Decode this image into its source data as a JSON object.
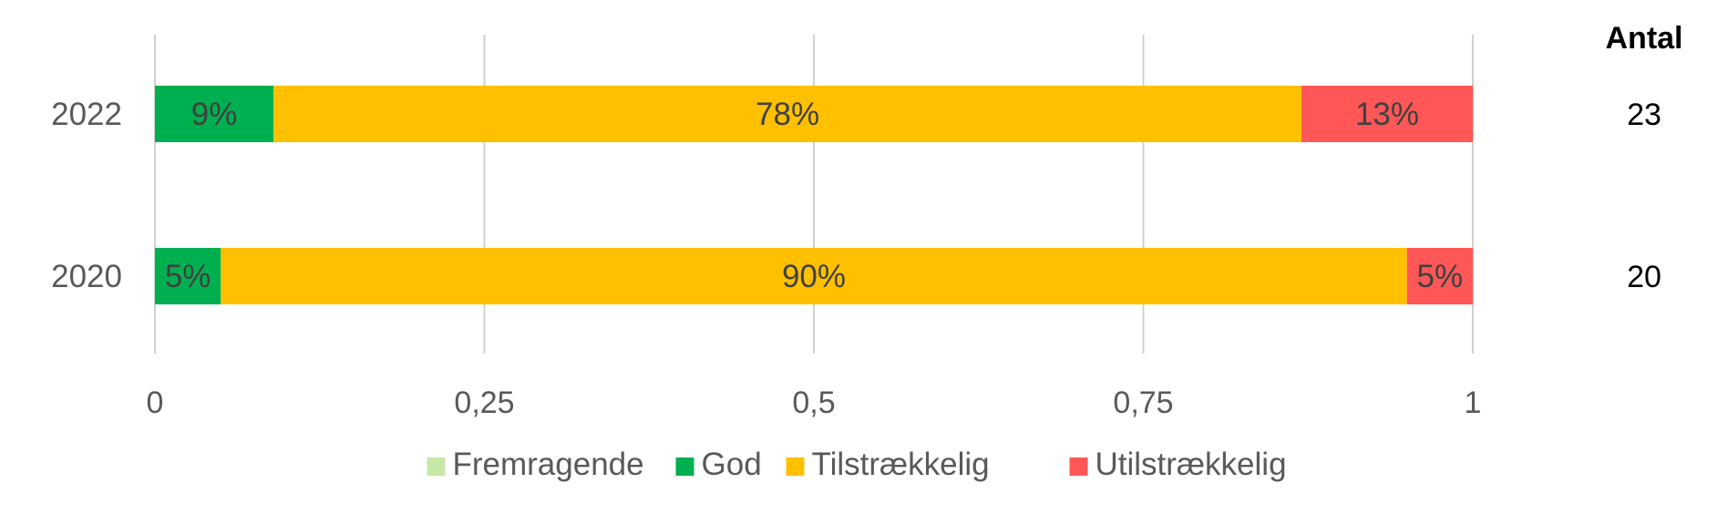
{
  "chart_data": {
    "type": "bar",
    "orientation": "horizontal",
    "stacked": true,
    "categories": [
      "2022",
      "2020"
    ],
    "series": [
      {
        "name": "Fremragende",
        "color": "#C5E8A8",
        "values": [
          0,
          0
        ],
        "labels": [
          "",
          ""
        ]
      },
      {
        "name": "God",
        "color": "#00B050",
        "values": [
          0.09,
          0.05
        ],
        "labels": [
          "9%",
          "5%"
        ]
      },
      {
        "name": "Tilstrækkelig",
        "color": "#FFC000",
        "values": [
          0.78,
          0.9
        ],
        "labels": [
          "78%",
          "90%"
        ]
      },
      {
        "name": "Utilstrækkelig",
        "color": "#FF5757",
        "values": [
          0.13,
          0.05
        ],
        "labels": [
          "13%",
          "5%"
        ]
      }
    ],
    "xlim": [
      0,
      1
    ],
    "xticks": [
      0,
      0.25,
      0.5,
      0.75,
      1
    ],
    "xtick_labels": [
      "0",
      "0,25",
      "0,5",
      "0,75",
      "1"
    ],
    "grid": true,
    "legend_position": "bottom",
    "side_column": {
      "header": "Antal",
      "values": [
        "23",
        "20"
      ]
    }
  }
}
